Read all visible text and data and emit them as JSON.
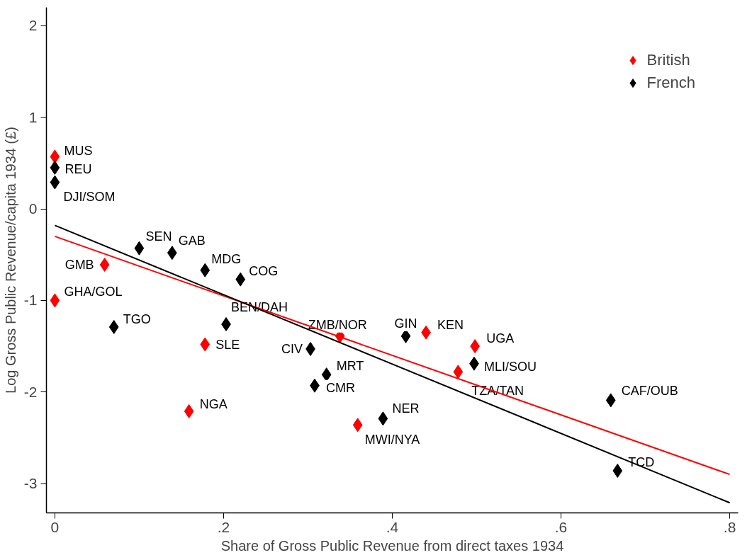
{
  "chart_data": {
    "type": "scatter",
    "xlabel": "Share of Gross Public Revenue from direct taxes 1934",
    "ylabel": "Log Gross Public Revenue/capita 1934 (£)",
    "xlim": [
      -0.01,
      0.81
    ],
    "ylim": [
      -3.32,
      2.2
    ],
    "xticks": [
      {
        "value": 0,
        "label": "0"
      },
      {
        "value": 0.2,
        "label": ".2"
      },
      {
        "value": 0.4,
        "label": ".4"
      },
      {
        "value": 0.6,
        "label": ".6"
      },
      {
        "value": 0.8,
        "label": ".8"
      }
    ],
    "yticks": [
      -3,
      -2,
      -1,
      0,
      1,
      2
    ],
    "grid": false,
    "legend": "top right",
    "marker": "diamond",
    "series": [
      {
        "name": "British",
        "color": "#ff0000",
        "x": [
          0,
          0.059,
          0,
          0.178,
          0.159,
          0.338,
          0.359,
          0.44,
          0.498,
          0.478
        ],
        "values": [
          0.57,
          -0.61,
          -1.0,
          -1.48,
          -2.21,
          -1.39,
          -2.36,
          -1.35,
          -1.5,
          -1.78
        ],
        "value_labels": [
          "MUS",
          "GMB",
          "GHA/GOL",
          "SLE",
          "NGA",
          "ZMB/NOR",
          "MWI/NYA",
          "KEN",
          "UGA",
          "TZA/TAN"
        ]
      },
      {
        "name": "French",
        "color": "#000000",
        "x": [
          0,
          0,
          0.1,
          0.139,
          0.178,
          0.22,
          0.07,
          0.203,
          0.303,
          0.322,
          0.308,
          0.416,
          0.497,
          0.389,
          0.659,
          0.667
        ],
        "values": [
          0.45,
          0.29,
          -0.43,
          -0.48,
          -0.67,
          -0.77,
          -1.29,
          -1.26,
          -1.53,
          -1.81,
          -1.93,
          -1.39,
          -1.69,
          -2.29,
          -2.09,
          -2.86
        ],
        "value_labels": [
          "REU",
          "DJI/SOM",
          "SEN",
          "GAB",
          "MDG",
          "COG",
          "TGO",
          "BEN/DAH",
          "CIV",
          "MRT",
          "CMR",
          "GIN",
          "MLI/SOU",
          "NER",
          "CAF/OUB",
          "TCD"
        ]
      },
      {
        "type": "line",
        "color": "#ff0000",
        "x": [
          0,
          0.8
        ],
        "values": [
          -0.3,
          -2.9
        ],
        "marker": "none"
      },
      {
        "type": "line",
        "color": "#000000",
        "x": [
          0,
          0.8
        ],
        "values": [
          -0.18,
          -3.21
        ],
        "marker": "none"
      }
    ]
  }
}
